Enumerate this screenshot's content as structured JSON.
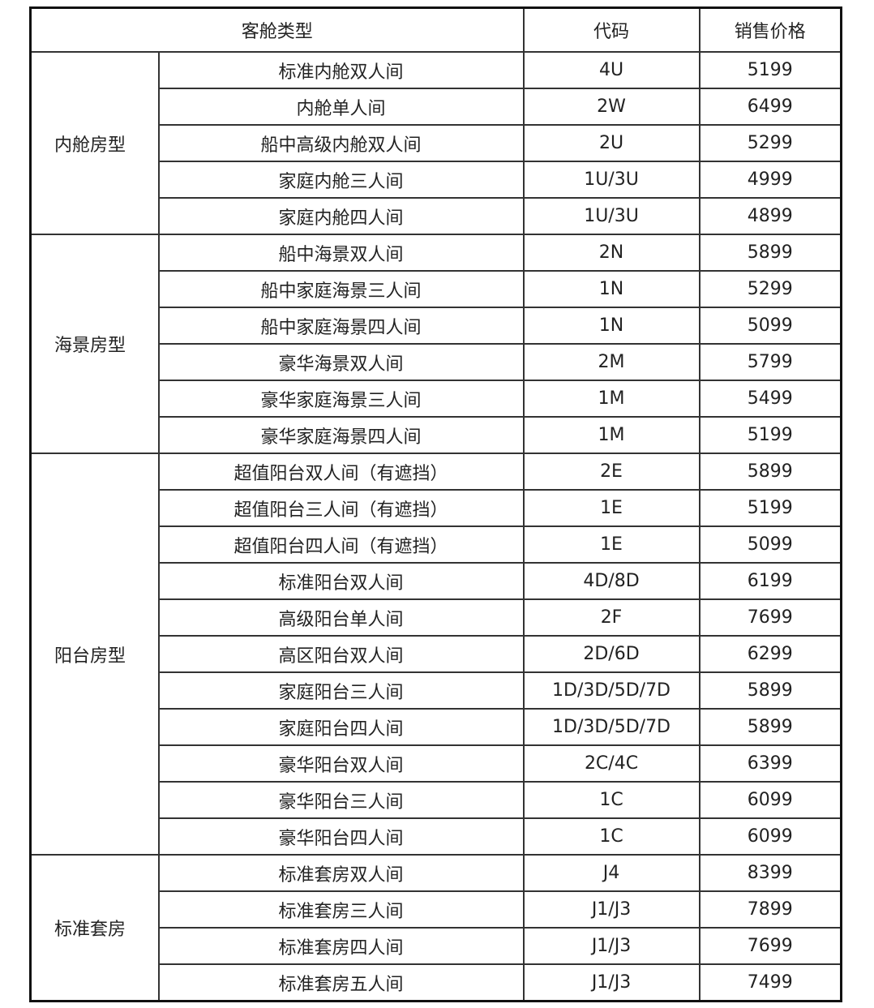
{
  "table": {
    "header": [
      "客舱类型",
      "代码",
      "销售价格"
    ],
    "groups": [
      {
        "name": "内舱房型",
        "rows": [
          [
            "标准内舱双人间",
            "4U",
            5199
          ],
          [
            "内舱单人间",
            "2W",
            6499
          ],
          [
            "船中高级内舱双人间",
            "2U",
            5299
          ],
          [
            "家庭内舱三人间",
            "1U/3U",
            4999
          ],
          [
            "家庭内舱四人间",
            "1U/3U",
            4899
          ]
        ]
      },
      {
        "name": "海景房型",
        "rows": [
          [
            "船中海景双人间",
            "2N",
            5899
          ],
          [
            "船中家庭海景三人间",
            "1N",
            5299
          ],
          [
            "船中家庭海景四人间",
            "1N",
            5099
          ],
          [
            "豪华海景双人间",
            "2M",
            5799
          ],
          [
            "豪华家庭海景三人间",
            "1M",
            5499
          ],
          [
            "豪华家庭海景四人间",
            "1M",
            5199
          ]
        ]
      },
      {
        "name": "阳台房型",
        "rows": [
          [
            "超值阳台双人间（有遮挡）",
            "2E",
            5899
          ],
          [
            "超值阳台三人间（有遮挡）",
            "1E",
            5199
          ],
          [
            "超值阳台四人间（有遮挡）",
            "1E",
            5099
          ],
          [
            "标准阳台双人间",
            "4D/8D",
            6199
          ],
          [
            "高级阳台单人间",
            "2F",
            7699
          ],
          [
            "高区阳台双人间",
            "2D/6D",
            6299
          ],
          [
            "家庭阳台三人间",
            "1D/3D/5D/7D",
            5899
          ],
          [
            "家庭阳台四人间",
            "1D/3D/5D/7D",
            5899
          ],
          [
            "豪华阳台双人间",
            "2C/4C",
            6399
          ],
          [
            "豪华阳台三人间",
            "1C",
            6099
          ],
          [
            "豪华阳台四人间",
            "1C",
            6099
          ]
        ]
      },
      {
        "name": "标准套房",
        "rows": [
          [
            "标准套房双人间",
            "J4",
            8399
          ],
          [
            "标准套房三人间",
            "J1/J3",
            7899
          ],
          [
            "标准套房四人间",
            "J1/J3",
            7699
          ],
          [
            "标准套房五人间",
            "J1/J3",
            7499
          ]
        ]
      }
    ]
  }
}
